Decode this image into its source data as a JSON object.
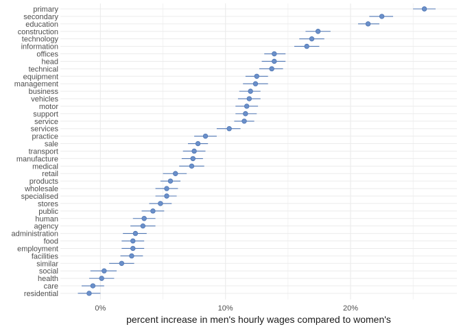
{
  "chart_data": {
    "type": "scatter",
    "xlabel": "percent increase in men's hourly wages compared to women's",
    "ylabel": "",
    "xlim": [
      -3.2,
      28.5
    ],
    "x_ticks": [
      0,
      10,
      20
    ],
    "x_tick_labels": [
      "0%",
      "10%",
      "20%"
    ],
    "grid": true,
    "error_bars": true,
    "categories": [
      "primary",
      "secondary",
      "education",
      "construction",
      "technology",
      "information",
      "offices",
      "head",
      "technical",
      "equipment",
      "management",
      "business",
      "vehicles",
      "motor",
      "support",
      "service",
      "services",
      "practice",
      "sale",
      "transport",
      "manufacture",
      "medical",
      "retail",
      "products",
      "wholesale",
      "specialised",
      "stores",
      "public",
      "human",
      "agency",
      "administration",
      "food",
      "employment",
      "facilities",
      "similar",
      "social",
      "health",
      "care",
      "residential"
    ],
    "values": [
      25.9,
      22.5,
      21.4,
      17.4,
      16.9,
      16.5,
      13.9,
      13.9,
      13.7,
      12.5,
      12.4,
      12.0,
      11.9,
      11.7,
      11.6,
      11.5,
      10.3,
      8.4,
      7.8,
      7.5,
      7.4,
      7.3,
      6.0,
      5.6,
      5.3,
      5.3,
      4.8,
      4.2,
      3.5,
      3.4,
      2.8,
      2.6,
      2.6,
      2.5,
      1.7,
      0.3,
      0.1,
      -0.6,
      -0.9
    ],
    "ci_low": [
      25.0,
      21.5,
      20.6,
      16.4,
      15.9,
      15.5,
      13.1,
      12.9,
      12.7,
      11.6,
      11.4,
      11.1,
      11.0,
      10.8,
      10.8,
      10.7,
      9.3,
      7.5,
      7.0,
      6.6,
      6.5,
      6.3,
      5.0,
      4.8,
      4.4,
      4.4,
      3.9,
      3.3,
      2.6,
      2.4,
      1.8,
      1.7,
      1.7,
      1.6,
      0.7,
      -0.8,
      -0.9,
      -1.5,
      -1.8
    ],
    "ci_high": [
      26.8,
      23.4,
      22.3,
      18.4,
      17.9,
      17.5,
      14.8,
      14.8,
      14.6,
      13.4,
      13.4,
      12.8,
      12.8,
      12.6,
      12.5,
      12.3,
      11.2,
      9.3,
      8.6,
      8.4,
      8.2,
      8.3,
      6.9,
      6.4,
      6.2,
      6.1,
      5.7,
      5.1,
      4.4,
      4.4,
      3.7,
      3.5,
      3.5,
      3.4,
      2.7,
      1.3,
      1.1,
      0.3,
      0.0
    ],
    "point_color": "#6a8fc9",
    "point_stroke": "#4f76b3",
    "errorbar_color": "#4f76b3",
    "grid_color": "#ebebeb"
  }
}
